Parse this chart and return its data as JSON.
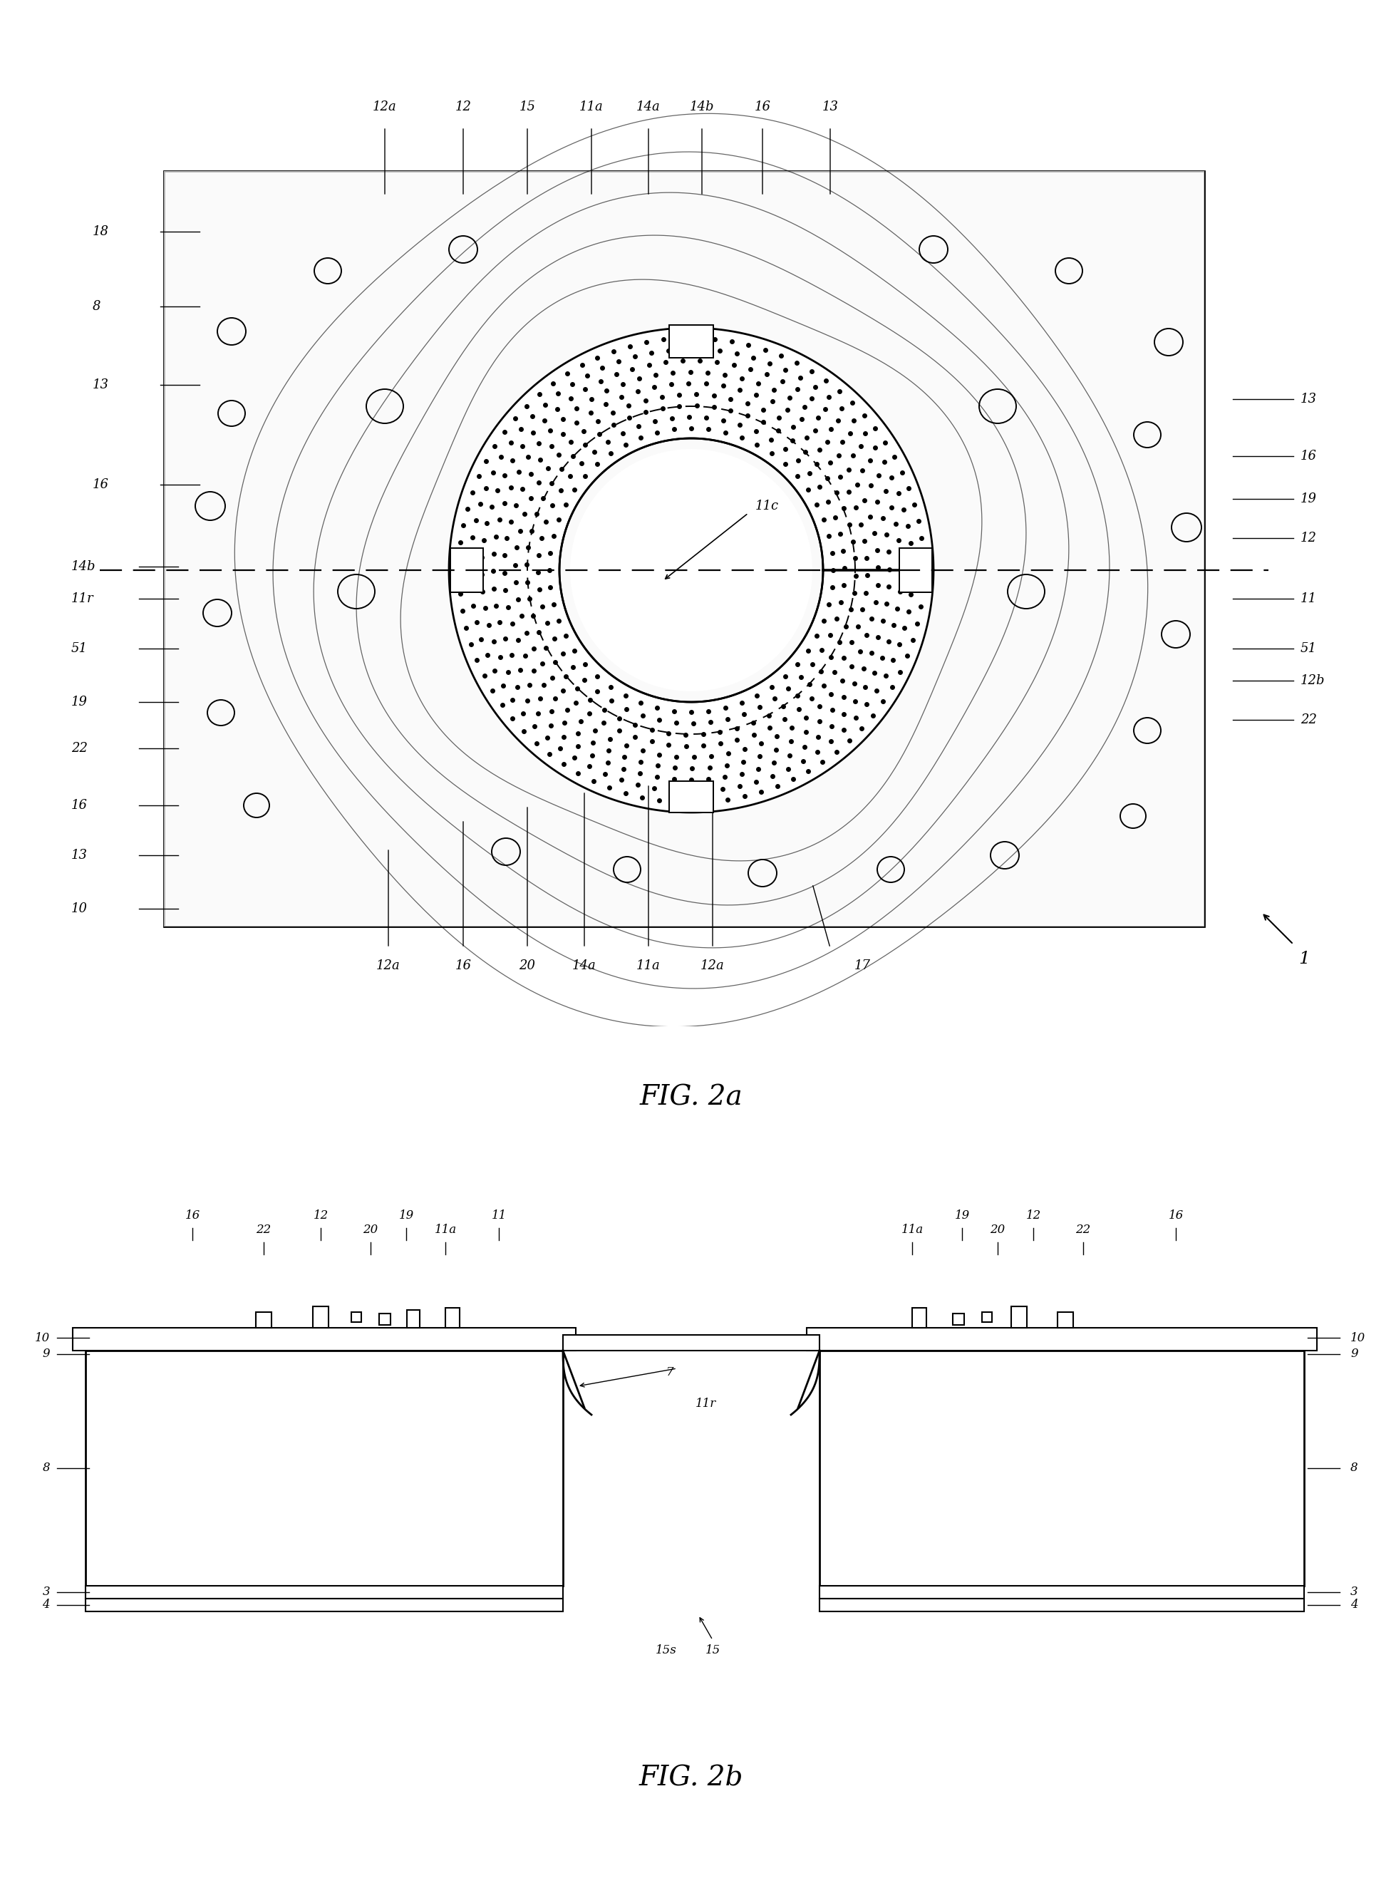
{
  "fig_title_a": "FIG. 2a",
  "fig_title_b": "FIG. 2b",
  "bg_color": "#ffffff",
  "line_color": "#000000",
  "dot_color": "#111111",
  "fig1_ref": "1"
}
